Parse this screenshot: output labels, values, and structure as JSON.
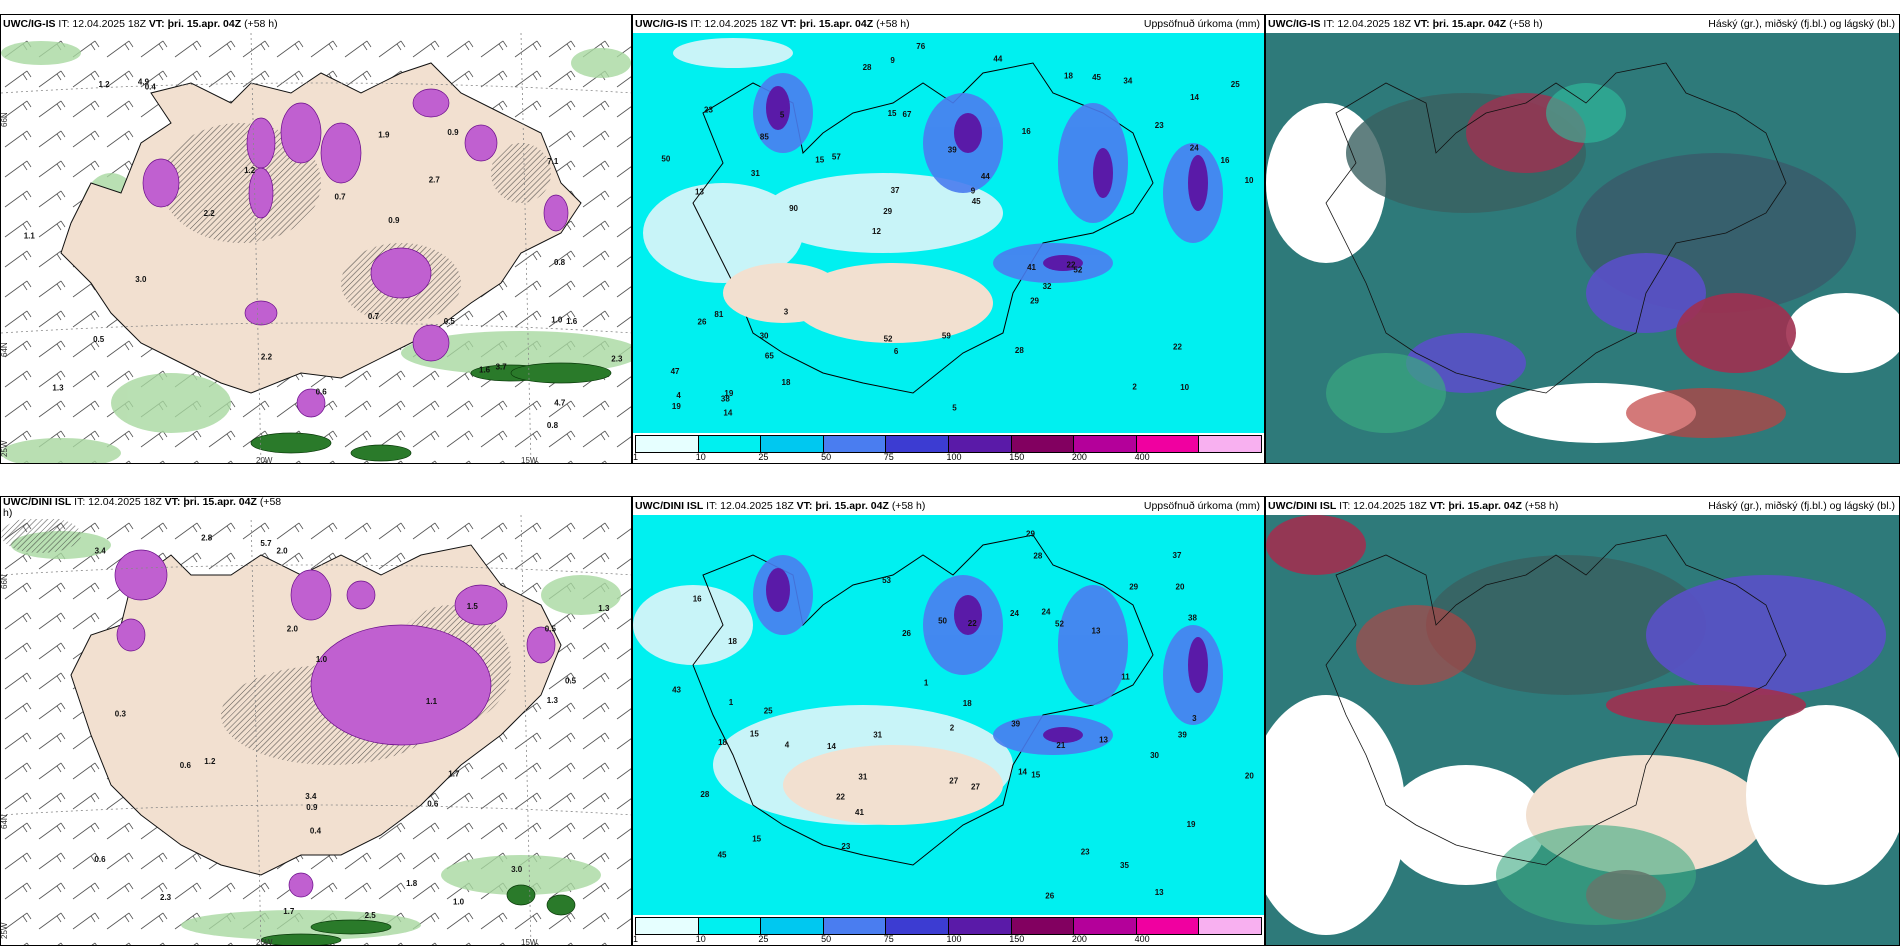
{
  "panels": [
    {
      "model": "UWC/IG-IS",
      "it": "IT: 12.04.2025 18Z",
      "vt_label": "VT:",
      "vt": "þri. 15.apr. 04Z",
      "lead": "(+58 h)",
      "right": ""
    },
    {
      "model": "UWC/IG-IS",
      "it": "IT: 12.04.2025 18Z",
      "vt_label": "VT:",
      "vt": "þri. 15.apr. 04Z",
      "lead": "(+58 h)",
      "right": "Uppsöfnuð úrkoma (mm)"
    },
    {
      "model": "UWC/IG-IS",
      "it": "IT: 12.04.2025 18Z",
      "vt_label": "VT:",
      "vt": "þri. 15.apr. 04Z",
      "lead": "(+58 h)",
      "right": "Háský (gr.), miðský (fj.bl.) og lágský (bl.)"
    },
    {
      "model": "UWC/DINI ISL",
      "it": "IT: 12.04.2025 18Z",
      "vt_label": "VT:",
      "vt": "þri. 15.apr. 04Z",
      "lead": "(+58",
      "right": "h)"
    },
    {
      "model": "UWC/DINI ISL",
      "it": "IT: 12.04.2025 18Z",
      "vt_label": "VT:",
      "vt": "þri. 15.apr. 04Z",
      "lead": "(+58 h)",
      "right": "Uppsöfnuð úrkoma (mm)"
    },
    {
      "model": "UWC/DINI ISL",
      "it": "IT: 12.04.2025 18Z",
      "vt_label": "VT:",
      "vt": "þri. 15.apr. 04Z",
      "lead": "(+58 h)",
      "right": "Háský (gr.), miðský (fj.bl.) og lágský (bl.)"
    }
  ],
  "axes": {
    "lat66": "66N",
    "lat64": "64N",
    "lon20": "20W",
    "lon15": "15W",
    "lon25": "25W"
  },
  "colorbar": {
    "labels": [
      "1",
      "10",
      "25",
      "50",
      "75",
      "100",
      "150",
      "200",
      "400"
    ],
    "colors": [
      "#e6ffff",
      "#00f0f0",
      "#00c8f0",
      "#4a7df0",
      "#3c3cd2",
      "#5a1aa8",
      "#820060",
      "#b4009a",
      "#f000a0",
      "#f8b0f0"
    ]
  },
  "precip_top": [
    "10",
    "13",
    "14",
    "12",
    "16",
    "19",
    "15",
    "39",
    "81",
    "57",
    "47",
    "65",
    "67",
    "44",
    "52",
    "23",
    "9",
    "10",
    "41",
    "24",
    "29",
    "52",
    "37",
    "5",
    "18",
    "3",
    "2",
    "22",
    "22",
    "5",
    "15",
    "31",
    "29",
    "18",
    "16",
    "9",
    "4",
    "6",
    "45",
    "26",
    "23",
    "25",
    "32",
    "28",
    "30",
    "14",
    "19",
    "59",
    "34",
    "76",
    "90",
    "50",
    "85",
    "45",
    "38",
    "44",
    "28"
  ],
  "precip_bot": [
    "13",
    "15",
    "14",
    "16",
    "19",
    "18",
    "15",
    "14",
    "13",
    "50",
    "52",
    "35",
    "41",
    "53",
    "39",
    "28",
    "13",
    "18",
    "43",
    "45",
    "37",
    "22",
    "11",
    "20",
    "3",
    "1",
    "4",
    "2",
    "1",
    "20",
    "15",
    "18",
    "22",
    "24",
    "26",
    "30",
    "39",
    "23",
    "29",
    "26",
    "31",
    "27",
    "23",
    "29",
    "31",
    "25",
    "38",
    "28",
    "24",
    "27",
    "21"
  ],
  "wind_top": [
    "0.5",
    "0.9",
    "1.0",
    "2.3",
    "1.9",
    "3.7",
    "0.7",
    "2.7",
    "1.6",
    "1.3",
    "0.4",
    "0.7",
    "0.8",
    "0.6",
    "1.2",
    "2.2",
    "0.8",
    "7.1",
    "4.7",
    "0.5",
    "3.0",
    "0.9",
    "2.2",
    "1.2",
    "4.9",
    "1.1",
    "1.6"
  ],
  "wind_bot": [
    "0.3",
    "2.8",
    "1.0",
    "1.5",
    "0.4",
    "1.3",
    "2.0",
    "0.5",
    "1.7",
    "2.5",
    "3.0",
    "2.3",
    "3.4",
    "1.8",
    "1.1",
    "0.9",
    "0.6",
    "0.6",
    "0.5",
    "0.6",
    "1.3",
    "3.4",
    "1.0",
    "1.2",
    "2.0",
    "5.7",
    "1.7"
  ]
}
